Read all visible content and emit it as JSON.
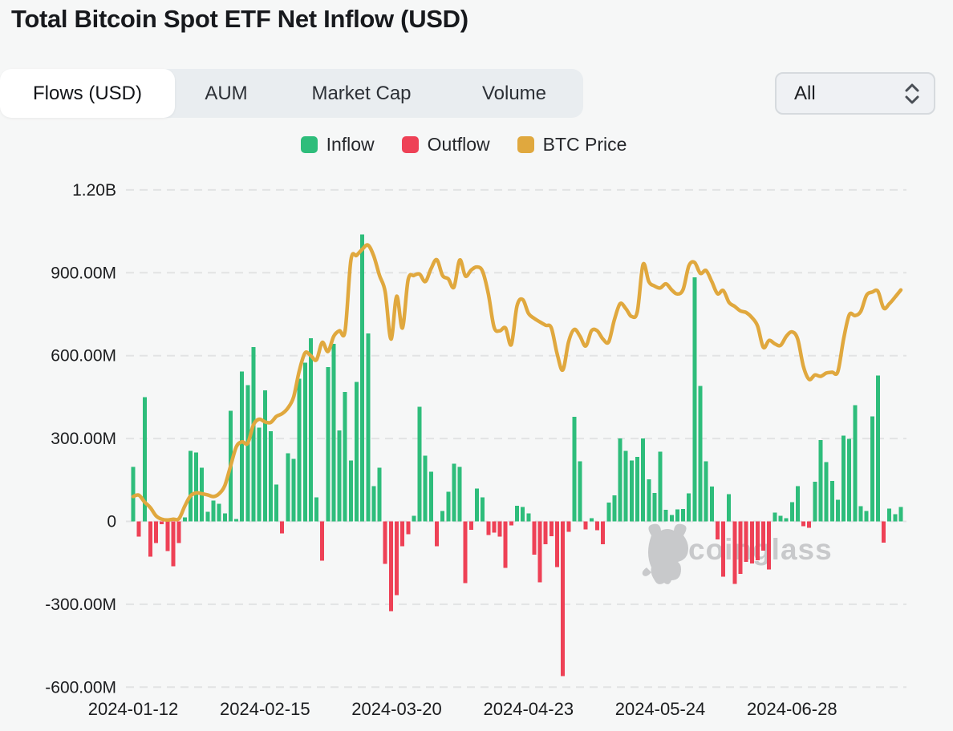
{
  "title": "Total Bitcoin Spot ETF Net Inflow (USD)",
  "tabs": {
    "items": [
      {
        "label": "Flows (USD)",
        "active": true
      },
      {
        "label": "AUM",
        "active": false
      },
      {
        "label": "Market Cap",
        "active": false
      },
      {
        "label": "Volume",
        "active": false
      }
    ]
  },
  "filter_dropdown": {
    "value": "All"
  },
  "legend": [
    {
      "label": "Inflow",
      "color": "#2ebd7b"
    },
    {
      "label": "Outflow",
      "color": "#ee4156"
    },
    {
      "label": "BTC Price",
      "color": "#e0a83e"
    }
  ],
  "watermark": {
    "text": "coinglass",
    "color": "#c0c2c4"
  },
  "chart_data": {
    "type": "bar",
    "title": "Total Bitcoin Spot ETF Net Inflow (USD)",
    "grid": "dashed-horizontal",
    "legend_position": "top-center",
    "y_axis": {
      "tick_labels": [
        "1.20B",
        "900.00M",
        "600.00M",
        "300.00M",
        "0",
        "-300.00M",
        "-600.00M"
      ],
      "tick_values_musd": [
        1200,
        900,
        600,
        300,
        0,
        -300,
        -600
      ],
      "ylim_musd": [
        -620,
        1270
      ]
    },
    "x_axis": {
      "tick_labels": [
        "2024-01-12",
        "2024-02-15",
        "2024-03-20",
        "2024-04-23",
        "2024-05-24",
        "2024-06-28"
      ],
      "tick_indices": [
        0,
        23,
        46,
        69,
        92,
        115
      ]
    },
    "dates": [
      "2024-01-12",
      "2024-01-16",
      "2024-01-17",
      "2024-01-18",
      "2024-01-19",
      "2024-01-22",
      "2024-01-23",
      "2024-01-24",
      "2024-01-25",
      "2024-01-26",
      "2024-01-29",
      "2024-01-30",
      "2024-01-31",
      "2024-02-01",
      "2024-02-02",
      "2024-02-05",
      "2024-02-06",
      "2024-02-07",
      "2024-02-08",
      "2024-02-09",
      "2024-02-12",
      "2024-02-13",
      "2024-02-14",
      "2024-02-15",
      "2024-02-16",
      "2024-02-20",
      "2024-02-21",
      "2024-02-22",
      "2024-02-23",
      "2024-02-26",
      "2024-02-27",
      "2024-02-28",
      "2024-02-29",
      "2024-03-01",
      "2024-03-04",
      "2024-03-05",
      "2024-03-06",
      "2024-03-07",
      "2024-03-08",
      "2024-03-11",
      "2024-03-12",
      "2024-03-13",
      "2024-03-14",
      "2024-03-15",
      "2024-03-18",
      "2024-03-19",
      "2024-03-20",
      "2024-03-21",
      "2024-03-22",
      "2024-03-25",
      "2024-03-26",
      "2024-03-27",
      "2024-03-28",
      "2024-04-01",
      "2024-04-02",
      "2024-04-03",
      "2024-04-04",
      "2024-04-05",
      "2024-04-08",
      "2024-04-09",
      "2024-04-10",
      "2024-04-11",
      "2024-04-12",
      "2024-04-15",
      "2024-04-16",
      "2024-04-17",
      "2024-04-18",
      "2024-04-19",
      "2024-04-22",
      "2024-04-23",
      "2024-04-24",
      "2024-04-25",
      "2024-04-26",
      "2024-04-29",
      "2024-04-30",
      "2024-05-01",
      "2024-05-02",
      "2024-05-03",
      "2024-05-06",
      "2024-05-07",
      "2024-05-08",
      "2024-05-09",
      "2024-05-10",
      "2024-05-13",
      "2024-05-14",
      "2024-05-15",
      "2024-05-16",
      "2024-05-17",
      "2024-05-20",
      "2024-05-21",
      "2024-05-22",
      "2024-05-23",
      "2024-05-24",
      "2024-05-28",
      "2024-05-29",
      "2024-05-30",
      "2024-05-31",
      "2024-06-03",
      "2024-06-04",
      "2024-06-05",
      "2024-06-06",
      "2024-06-07",
      "2024-06-10",
      "2024-06-11",
      "2024-06-12",
      "2024-06-13",
      "2024-06-14",
      "2024-06-17",
      "2024-06-18",
      "2024-06-20",
      "2024-06-21",
      "2024-06-24",
      "2024-06-25",
      "2024-06-26",
      "2024-06-27",
      "2024-06-28",
      "2024-07-01",
      "2024-07-02",
      "2024-07-03",
      "2024-07-05",
      "2024-07-08",
      "2024-07-09",
      "2024-07-10",
      "2024-07-11",
      "2024-07-12",
      "2024-07-15",
      "2024-07-16",
      "2024-07-17",
      "2024-07-18",
      "2024-07-19",
      "2024-07-22",
      "2024-07-23",
      "2024-07-24",
      "2024-07-25",
      "2024-07-26"
    ],
    "series": [
      {
        "name": "Net Flow",
        "type": "bar",
        "unit": "million USD",
        "color_positive": "#2ebd7b",
        "color_negative": "#ee4156",
        "values": [
          198,
          -55,
          450,
          -128,
          -79,
          -10,
          -108,
          -163,
          -79,
          15,
          255,
          250,
          195,
          35,
          75,
          64,
          29,
          400,
          8,
          542,
          493,
          631,
          339,
          475,
          326,
          134,
          -44,
          247,
          227,
          517,
          575,
          663,
          87,
          -142,
          559,
          643,
          329,
          469,
          220,
          505,
          1039,
          680,
          128,
          194,
          -154,
          -325,
          -267,
          -90,
          -46,
          20,
          415,
          238,
          180,
          -90,
          38,
          107,
          209,
          198,
          -223,
          -30,
          119,
          87,
          -50,
          -40,
          -55,
          -168,
          -14,
          56,
          52,
          29,
          -121,
          -220,
          -82,
          -53,
          -165,
          -560,
          -38,
          378,
          218,
          -29,
          11,
          -32,
          -82,
          68,
          95,
          300,
          255,
          220,
          234,
          301,
          152,
          103,
          253,
          42,
          23,
          44,
          45,
          101,
          884,
          490,
          217,
          126,
          -65,
          -200,
          98,
          -226,
          -190,
          -146,
          -152,
          -140,
          -106,
          -174,
          32,
          20,
          11,
          70,
          128,
          -17,
          -23,
          143,
          294,
          215,
          146,
          79,
          310,
          299,
          421,
          55,
          38,
          380,
          528,
          -77,
          46,
          26,
          52
        ]
      },
      {
        "name": "BTC Price",
        "type": "line",
        "color": "#e0a83e",
        "price_axis_visible": false,
        "values_on_flow_axis_musd": [
          90,
          95,
          70,
          50,
          20,
          8,
          5,
          8,
          10,
          55,
          92,
          103,
          100,
          96,
          90,
          100,
          130,
          200,
          270,
          288,
          283,
          350,
          370,
          360,
          358,
          380,
          390,
          410,
          450,
          545,
          610,
          600,
          585,
          648,
          615,
          670,
          690,
          690,
          945,
          963,
          985,
          1000,
          960,
          890,
          830,
          660,
          815,
          700,
          875,
          890,
          895,
          868,
          915,
          947,
          890,
          878,
          848,
          946,
          888,
          910,
          921,
          905,
          823,
          703,
          690,
          700,
          640,
          780,
          803,
          753,
          735,
          722,
          710,
          700,
          607,
          548,
          650,
          695,
          670,
          635,
          690,
          690,
          660,
          650,
          730,
          788,
          770,
          742,
          760,
          930,
          868,
          852,
          845,
          860,
          838,
          823,
          840,
          925,
          937,
          898,
          908,
          868,
          824,
          836,
          793,
          778,
          762,
          756,
          738,
          707,
          630,
          655,
          643,
          637,
          670,
          686,
          660,
          560,
          514,
          530,
          525,
          537,
          540,
          542,
          660,
          748,
          745,
          760,
          818,
          830,
          833,
          772,
          788,
          812,
          838
        ]
      }
    ]
  }
}
